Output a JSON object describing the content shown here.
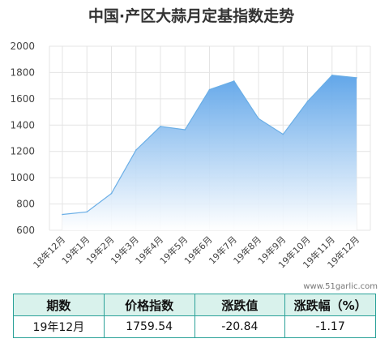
{
  "chart_data": {
    "type": "area",
    "title": "中国·产区大蒜月定基指数走势",
    "categories": [
      "18年12月",
      "19年1月",
      "19年2月",
      "19年3月",
      "19年4月",
      "19年5月",
      "19年6月",
      "19年7月",
      "19年8月",
      "19年9月",
      "19年10月",
      "19年11月",
      "19年12月"
    ],
    "values": [
      720,
      740,
      880,
      1210,
      1390,
      1365,
      1670,
      1735,
      1450,
      1330,
      1580,
      1780,
      1760
    ],
    "ylim": [
      600,
      2000
    ],
    "yticks": [
      "600",
      "800",
      "1000",
      "1200",
      "1400",
      "1600",
      "1800",
      "2000"
    ],
    "grid": true,
    "colors": {
      "line": "#6aaee6",
      "fill_top": "#5aa2e8",
      "fill_bottom": "#ffffff"
    }
  },
  "watermark": "www.51garlic.com",
  "table": {
    "headers": [
      "期数",
      "价格指数",
      "涨跌值",
      "涨跌幅（%）"
    ],
    "row": [
      "19年12月",
      "1759.54",
      "-20.84",
      "-1.17"
    ]
  }
}
